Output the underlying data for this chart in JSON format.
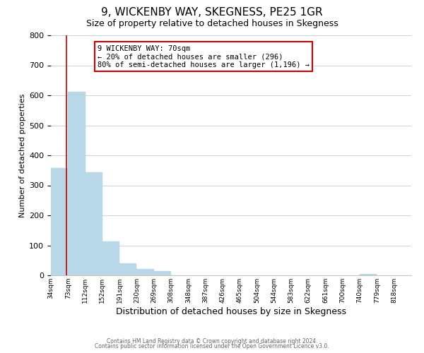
{
  "title": "9, WICKENBY WAY, SKEGNESS, PE25 1GR",
  "subtitle": "Size of property relative to detached houses in Skegness",
  "xlabel": "Distribution of detached houses by size in Skegness",
  "ylabel": "Number of detached properties",
  "bar_values": [
    357,
    612,
    343,
    113,
    40,
    22,
    13,
    0,
    0,
    0,
    0,
    0,
    0,
    0,
    0,
    0,
    0,
    0,
    5,
    0,
    0
  ],
  "bar_labels": [
    "34sqm",
    "73sqm",
    "112sqm",
    "152sqm",
    "191sqm",
    "230sqm",
    "269sqm",
    "308sqm",
    "348sqm",
    "387sqm",
    "426sqm",
    "465sqm",
    "504sqm",
    "544sqm",
    "583sqm",
    "622sqm",
    "661sqm",
    "700sqm",
    "740sqm",
    "779sqm",
    "818sqm"
  ],
  "bar_color": "#b8d8e8",
  "bar_edge_color": "#b8d8e8",
  "ylim": [
    0,
    800
  ],
  "yticks": [
    0,
    100,
    200,
    300,
    400,
    500,
    600,
    700,
    800
  ],
  "vline_color": "#cc0000",
  "annotation_title": "9 WICKENBY WAY: 70sqm",
  "annotation_line1": "← 20% of detached houses are smaller (296)",
  "annotation_line2": "80% of semi-detached houses are larger (1,196) →",
  "annotation_box_color": "#ffffff",
  "annotation_box_edge_color": "#cc0000",
  "background_color": "#ffffff",
  "grid_color": "#c8d4e4",
  "footer_line1": "Contains HM Land Registry data © Crown copyright and database right 2024.",
  "footer_line2": "Contains public sector information licensed under the Open Government Licence v3.0.",
  "title_fontsize": 11,
  "subtitle_fontsize": 9,
  "xlabel_fontsize": 9,
  "ylabel_fontsize": 8
}
